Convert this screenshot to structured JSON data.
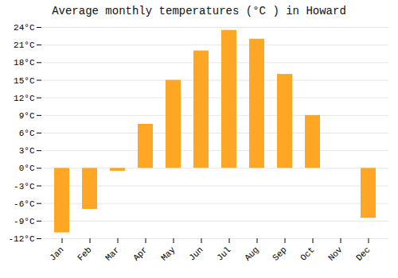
{
  "chart_data": {
    "type": "bar",
    "title": "Average monthly temperatures (°C ) in Howard",
    "categories": [
      "Jan",
      "Feb",
      "Mar",
      "Apr",
      "May",
      "Jun",
      "Jul",
      "Aug",
      "Sep",
      "Oct",
      "Nov",
      "Dec"
    ],
    "values": [
      -11,
      -7,
      -0.5,
      7.5,
      15,
      20,
      23.5,
      22,
      16,
      9,
      0,
      -8.5
    ],
    "color": "#FFA724",
    "ylim": [
      -12,
      24
    ],
    "yticks": [
      {
        "value": -12,
        "label": "-12°C"
      },
      {
        "value": -9,
        "label": "-9°C"
      },
      {
        "value": -6,
        "label": "-6°C"
      },
      {
        "value": -3,
        "label": "-3°C"
      },
      {
        "value": 0,
        "label": "0°C"
      },
      {
        "value": 3,
        "label": "3°C"
      },
      {
        "value": 6,
        "label": "6°C"
      },
      {
        "value": 9,
        "label": "9°C"
      },
      {
        "value": 12,
        "label": "12°C"
      },
      {
        "value": 15,
        "label": "15°C"
      },
      {
        "value": 18,
        "label": "18°C"
      },
      {
        "value": 21,
        "label": "21°C"
      },
      {
        "value": 24,
        "label": "24°C"
      }
    ],
    "grid": true
  }
}
